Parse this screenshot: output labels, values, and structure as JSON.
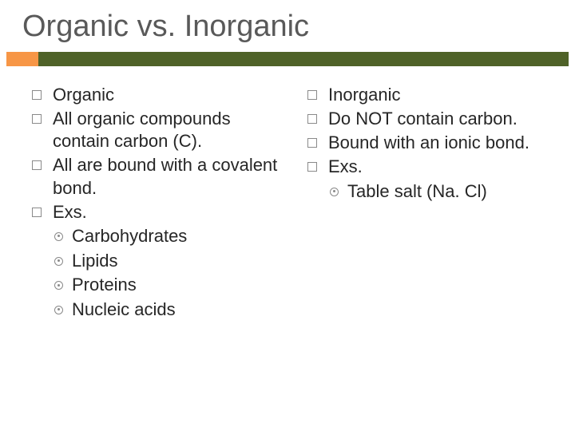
{
  "title": "Organic vs. Inorganic",
  "accent_color": "#4f6228",
  "highlight_color": "#f79646",
  "text_color": "#262626",
  "title_color": "#595959",
  "title_fontsize": 38,
  "body_fontsize": 22,
  "left": {
    "items": [
      "Organic",
      "All organic compounds contain carbon (C).",
      "All are bound with a covalent bond.",
      "Exs."
    ],
    "sub": [
      "Carbohydrates",
      "Lipids",
      "Proteins",
      "Nucleic acids"
    ]
  },
  "right": {
    "items": [
      "Inorganic",
      "Do NOT contain carbon.",
      "Bound with an ionic bond.",
      "Exs."
    ],
    "sub": [
      "Table salt (Na. Cl)"
    ]
  }
}
